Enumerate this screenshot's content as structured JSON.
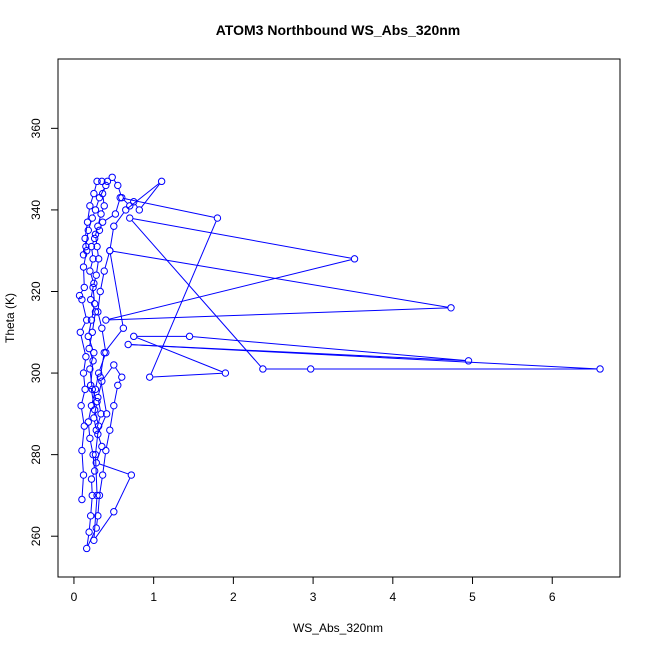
{
  "chart_data": {
    "type": "line",
    "title": "ATOM3 Northbound WS_Abs_320nm",
    "xlabel": "WS_Abs_320nm",
    "ylabel": "Theta (K)",
    "xlim": [
      -0.2,
      6.85
    ],
    "ylim": [
      250,
      377
    ],
    "xticks": [
      0,
      1,
      2,
      3,
      4,
      5,
      6
    ],
    "yticks": [
      260,
      280,
      300,
      320,
      340,
      360
    ],
    "grid": false,
    "legend": "none",
    "series": [
      {
        "color": "#0000ff",
        "marker": "open-circle",
        "points": [
          [
            0.1,
            269
          ],
          [
            0.12,
            275
          ],
          [
            0.1,
            281
          ],
          [
            0.13,
            287
          ],
          [
            0.09,
            292
          ],
          [
            0.14,
            296
          ],
          [
            0.12,
            300
          ],
          [
            0.15,
            304
          ],
          [
            0.08,
            310
          ],
          [
            0.16,
            313
          ],
          [
            0.1,
            318
          ],
          [
            0.07,
            319
          ],
          [
            0.13,
            321
          ],
          [
            0.12,
            326
          ],
          [
            0.16,
            330
          ],
          [
            0.14,
            333
          ],
          [
            0.17,
            337
          ],
          [
            0.2,
            341
          ],
          [
            0.25,
            344
          ],
          [
            0.29,
            347
          ],
          [
            0.35,
            347
          ],
          [
            0.42,
            347
          ],
          [
            0.48,
            348
          ],
          [
            0.55,
            346
          ],
          [
            0.6,
            343
          ],
          [
            0.7,
            341
          ],
          [
            0.75,
            342
          ],
          [
            0.82,
            340
          ],
          [
            1.1,
            347
          ],
          [
            0.65,
            340
          ],
          [
            0.5,
            336
          ],
          [
            0.45,
            330
          ],
          [
            0.38,
            325
          ],
          [
            0.33,
            320
          ],
          [
            0.3,
            315
          ],
          [
            0.35,
            311
          ],
          [
            0.4,
            305
          ],
          [
            0.31,
            300
          ],
          [
            0.27,
            296
          ],
          [
            0.22,
            292
          ],
          [
            0.18,
            288
          ],
          [
            0.2,
            284
          ],
          [
            0.24,
            280
          ],
          [
            0.26,
            276
          ],
          [
            0.22,
            274
          ],
          [
            0.23,
            270
          ],
          [
            0.21,
            265
          ],
          [
            0.19,
            261
          ],
          [
            0.16,
            257
          ],
          [
            0.28,
            262
          ],
          [
            0.3,
            265
          ],
          [
            0.32,
            270
          ],
          [
            0.36,
            275
          ],
          [
            0.4,
            281
          ],
          [
            0.45,
            286
          ],
          [
            0.5,
            292
          ],
          [
            0.55,
            297
          ],
          [
            0.6,
            299
          ],
          [
            0.5,
            302
          ],
          [
            0.35,
            298
          ],
          [
            0.3,
            294
          ],
          [
            0.34,
            290
          ],
          [
            0.28,
            286
          ],
          [
            0.25,
            289
          ],
          [
            0.29,
            293
          ],
          [
            0.23,
            296
          ],
          [
            0.2,
            301
          ],
          [
            0.25,
            305
          ],
          [
            0.18,
            309
          ],
          [
            0.22,
            313
          ],
          [
            0.26,
            317
          ],
          [
            0.24,
            321
          ],
          [
            0.28,
            324
          ],
          [
            0.31,
            328
          ],
          [
            0.29,
            331
          ],
          [
            0.27,
            334
          ],
          [
            0.32,
            335
          ],
          [
            0.36,
            337
          ],
          [
            0.52,
            339
          ],
          [
            0.58,
            343
          ],
          [
            1.8,
            338
          ],
          [
            0.95,
            299
          ],
          [
            1.9,
            300
          ],
          [
            0.75,
            309
          ],
          [
            1.45,
            309
          ],
          [
            4.95,
            303
          ],
          [
            0.68,
            307
          ],
          [
            6.6,
            301
          ],
          [
            2.97,
            301
          ],
          [
            2.37,
            301
          ],
          [
            0.7,
            338
          ],
          [
            3.52,
            328
          ],
          [
            0.4,
            313
          ],
          [
            4.73,
            316
          ],
          [
            0.45,
            330
          ],
          [
            0.62,
            311
          ],
          [
            0.38,
            305
          ],
          [
            0.33,
            299
          ],
          [
            0.41,
            290
          ],
          [
            0.3,
            285
          ],
          [
            0.35,
            282
          ],
          [
            0.28,
            278
          ],
          [
            0.72,
            275
          ],
          [
            0.5,
            266
          ],
          [
            0.25,
            259
          ],
          [
            0.29,
            270
          ],
          [
            0.27,
            280
          ],
          [
            0.31,
            287
          ],
          [
            0.26,
            291
          ],
          [
            0.21,
            297
          ],
          [
            0.24,
            303
          ],
          [
            0.19,
            306
          ],
          [
            0.23,
            310
          ],
          [
            0.27,
            315
          ],
          [
            0.21,
            318
          ],
          [
            0.25,
            322
          ],
          [
            0.2,
            325
          ],
          [
            0.24,
            328
          ],
          [
            0.22,
            331
          ],
          [
            0.26,
            333
          ],
          [
            0.3,
            336
          ],
          [
            0.34,
            339
          ],
          [
            0.38,
            341
          ],
          [
            0.36,
            344
          ],
          [
            0.4,
            346
          ],
          [
            0.32,
            343
          ],
          [
            0.27,
            340
          ],
          [
            0.23,
            338
          ],
          [
            0.18,
            335
          ],
          [
            0.15,
            331
          ],
          [
            0.12,
            329
          ]
        ]
      }
    ]
  }
}
